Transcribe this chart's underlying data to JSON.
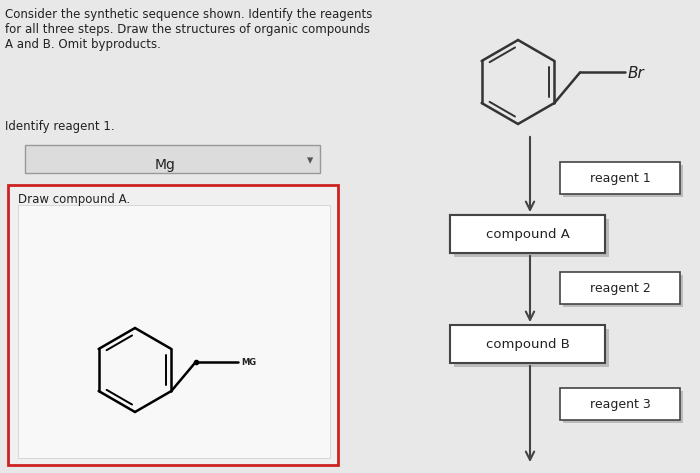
{
  "background_color": "#e8e8e8",
  "title_text": "Consider the synthetic sequence shown. Identify the reagents\nfor all three steps. Draw the structures of organic compounds\nA and B. Omit byproducts.",
  "identify_text": "Identify reagent 1.",
  "mg_box_text": "Mg",
  "draw_compound_text": "Draw compound A.",
  "reagent1_text": "reagent 1",
  "reagent2_text": "reagent 2",
  "reagent3_text": "reagent 3",
  "compoundA_text": "compound A",
  "compoundB_text": "compound B",
  "br_text": "Br",
  "mg_label_text": "MG",
  "left_panel_border_color": "#cc2222",
  "box_border_color": "#444444",
  "arrow_color": "#444444",
  "text_color": "#222222",
  "font_size_title": 8.5,
  "font_size_label": 8.5,
  "font_size_box": 9.5
}
